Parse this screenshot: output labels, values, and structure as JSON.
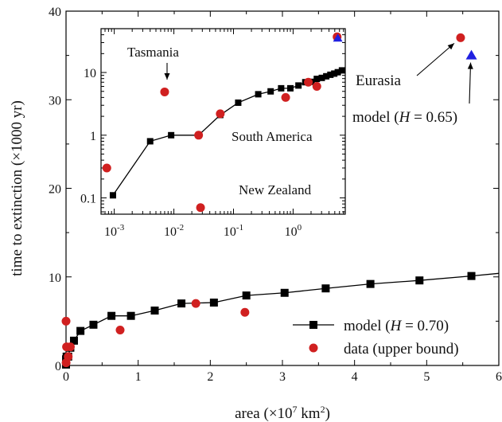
{
  "chart_data": [
    {
      "type": "scatter",
      "panel": "main",
      "xlabel": {
        "pre": "area (×10",
        "sup": "7",
        "post": " km",
        "sup2": "2",
        "close": ")"
      },
      "ylabel": "time to extinction (×1000 yr)",
      "xlim": [
        0,
        6
      ],
      "ylim": [
        0,
        40
      ],
      "x_ticks": [
        0,
        1,
        2,
        3,
        4,
        5,
        6
      ],
      "y_ticks": [
        0,
        10,
        20,
        30,
        40
      ],
      "grid": false,
      "legend_position": "bottom-right",
      "legend": [
        {
          "prefix": "model (",
          "var": "H",
          "suffix": " = 0.70)",
          "marker": "square-line"
        },
        {
          "text": "data (upper bound)",
          "marker": "circle"
        }
      ],
      "series": [
        {
          "name": "model (H = 0.70)",
          "kind": "line-square",
          "color": "#000000",
          "x": [
            0.0001,
            0.0004,
            0.008,
            0.03,
            0.06,
            0.11,
            0.2,
            0.38,
            0.63,
            0.9,
            1.23,
            1.6,
            2.05,
            2.5,
            3.03,
            3.6,
            4.22,
            4.9,
            5.62
          ],
          "y": [
            0.1,
            0.7,
            1.0,
            1.0,
            2.0,
            2.8,
            3.9,
            4.6,
            5.6,
            5.6,
            6.2,
            7.0,
            7.1,
            7.9,
            8.2,
            8.7,
            9.2,
            9.6,
            10.1
          ],
          "extend_to": [
            6.0,
            10.4
          ]
        },
        {
          "name": "data (upper bound)",
          "kind": "circle",
          "color": "#d02020",
          "x": [
            0.0001,
            0.001,
            0.007,
            0.03,
            0.06,
            0.75,
            1.8,
            2.48,
            5.47
          ],
          "y": [
            5.0,
            0.3,
            2.1,
            1.0,
            2.1,
            4.0,
            7.0,
            6.0,
            37.0
          ]
        },
        {
          "name": "model (H = 0.65)",
          "kind": "triangle",
          "color": "#2020e0",
          "x": [
            5.62
          ],
          "y": [
            35.0
          ]
        }
      ],
      "annotations": [
        {
          "key": "eurasia",
          "text": "Eurasia",
          "points_to": [
            5.47,
            37.0
          ]
        },
        {
          "key": "model65",
          "prefix": "model (",
          "var": "H",
          "suffix": " = 0.65)",
          "points_to": [
            5.62,
            35.0
          ]
        }
      ]
    },
    {
      "type": "scatter",
      "panel": "inset",
      "xscale": "log",
      "yscale": "log",
      "xlim": [
        0.0006,
        7.5
      ],
      "ylim": [
        0.055,
        50
      ],
      "x_ticks": [
        {
          "value": 0.001,
          "base": "10",
          "exp": "-3"
        },
        {
          "value": 0.01,
          "base": "10",
          "exp": "-2"
        },
        {
          "value": 0.1,
          "base": "10",
          "exp": "-1"
        },
        {
          "value": 1,
          "base": "10",
          "exp": "0"
        }
      ],
      "y_ticks": [
        {
          "value": 0.1,
          "label": "0.1"
        },
        {
          "value": 1,
          "label": "1"
        },
        {
          "value": 10,
          "label": "10"
        }
      ],
      "series": [
        {
          "name": "model (H = 0.70)",
          "kind": "line-square",
          "color": "#000000",
          "x": [
            0.00095,
            0.004,
            0.009,
            0.026,
            0.06,
            0.12,
            0.26,
            0.42,
            0.63,
            0.9,
            1.23,
            1.6,
            2.05,
            2.5,
            3.03,
            3.6,
            4.22,
            4.9,
            5.62,
            6.6
          ],
          "y": [
            0.11,
            0.8,
            1.0,
            1.0,
            2.1,
            3.3,
            4.5,
            5.0,
            5.6,
            5.6,
            6.2,
            7.0,
            7.1,
            7.9,
            8.2,
            8.7,
            9.2,
            9.6,
            10.1,
            10.8
          ],
          "extend_to": [
            7.5,
            11.2
          ]
        },
        {
          "name": "data (upper bound)",
          "kind": "circle",
          "color": "#d02020",
          "x": [
            0.00075,
            0.007,
            0.026,
            0.028,
            0.06,
            0.75,
            1.8,
            2.5,
            5.47
          ],
          "y": [
            0.3,
            4.9,
            1.0,
            0.07,
            2.2,
            4.0,
            7.0,
            6.0,
            37.0
          ]
        },
        {
          "name": "model (H = 0.65)",
          "kind": "triangle",
          "color": "#2020e0",
          "x": [
            5.62
          ],
          "y": [
            35.0
          ]
        }
      ],
      "annotations": [
        {
          "key": "tasmania",
          "text": "Tasmania",
          "points_to": [
            0.007,
            4.9
          ]
        },
        {
          "key": "south_america",
          "text": "South America"
        },
        {
          "key": "new_zealand",
          "text": "New Zealand"
        }
      ]
    }
  ]
}
